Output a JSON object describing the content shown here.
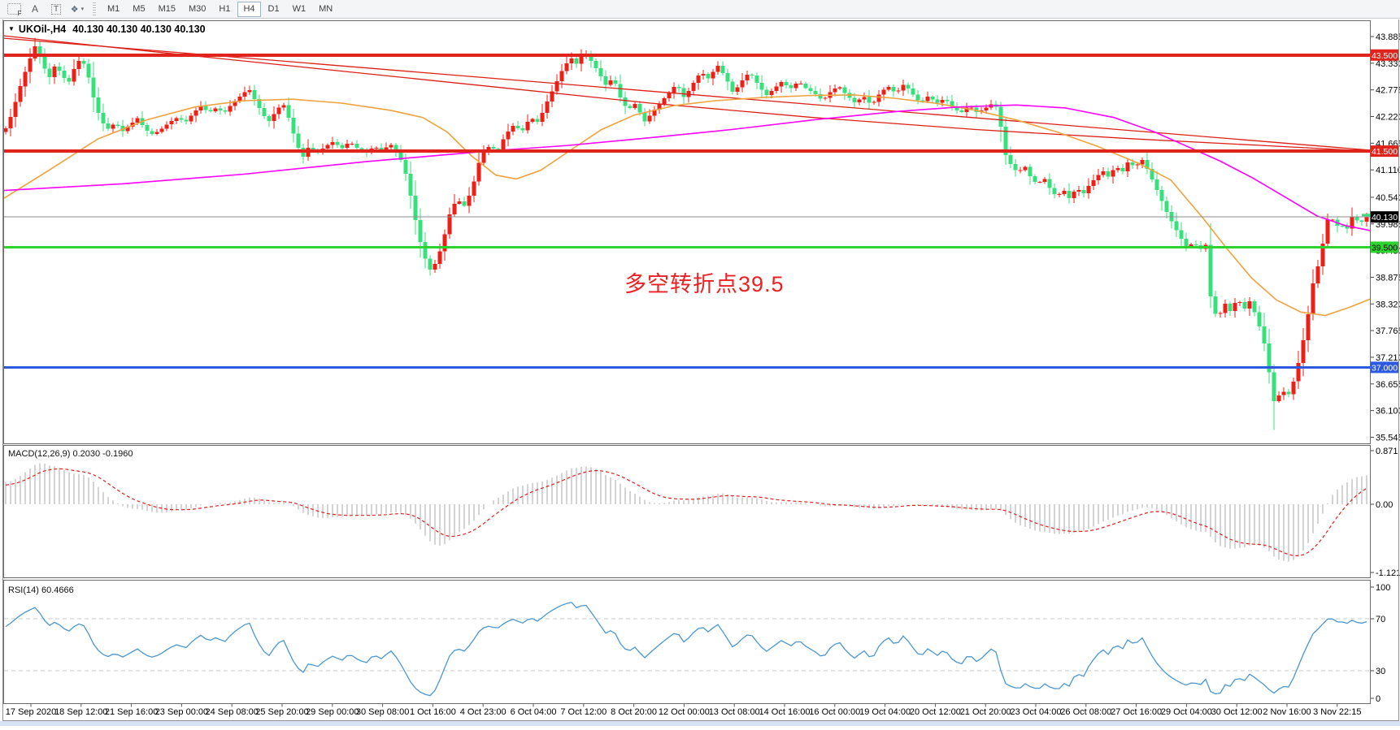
{
  "ui": {
    "toolbar": {
      "icons": [
        {
          "name": "fibonacci-icon",
          "glyph": "F"
        },
        {
          "name": "text-icon",
          "glyph": "A"
        },
        {
          "name": "label-icon",
          "glyph": "T"
        },
        {
          "name": "arrows-icon",
          "glyph": "❖"
        }
      ],
      "caret": "▾",
      "timeframes": [
        "M1",
        "M5",
        "M15",
        "M30",
        "H1",
        "H4",
        "D1",
        "W1",
        "MN"
      ],
      "active_timeframe": "H4"
    },
    "chart_title": {
      "triangle": "▼",
      "symbol": "UKOil-,H4",
      "ohlc": "40.130 40.130 40.130 40.130"
    }
  },
  "colors": {
    "candle_up": "#ef1f17",
    "candle_down": "#37e07d",
    "ma_fast": "#f0a23c",
    "ma_slow": "#ff00ff",
    "trend_red": "#dd1f16",
    "macd_bar": "#c2c2c2",
    "macd_signal": "#e02020",
    "rsi_line": "#4b96d2",
    "annotation_red": "#ee2024",
    "level_red": "#e0241b",
    "level_green": "#2fd32f",
    "level_blue": "#2d59e0",
    "current_line": "#8c8c8c"
  },
  "chart_data": {
    "type": "candlestick",
    "symbol": "UKOil-",
    "timeframe": "H4",
    "last_price": 40.13,
    "annotation": "多空转折点39.5",
    "y_axis_ticks": [
      "43.885",
      "43.330",
      "42.775",
      "42.220",
      "41.665",
      "41.110",
      "40.540",
      "39.985",
      "39.430",
      "38.875",
      "38.320",
      "37.765",
      "37.210",
      "36.655",
      "36.100",
      "35.545"
    ],
    "x_axis_labels": [
      "17 Sep 2020",
      "18 Sep 12:00",
      "21 Sep 16:00",
      "23 Sep 00:00",
      "24 Sep 08:00",
      "25 Sep 20:00",
      "29 Sep 00:00",
      "30 Sep 08:00",
      "1 Oct 16:00",
      "4 Oct 23:00",
      "6 Oct 04:00",
      "7 Oct 12:00",
      "8 Oct 20:00",
      "12 Oct 00:00",
      "13 Oct 08:00",
      "14 Oct 16:00",
      "16 Oct 00:00",
      "19 Oct 04:00",
      "20 Oct 12:00",
      "21 Oct 20:00",
      "23 Oct 04:00",
      "26 Oct 08:00",
      "27 Oct 16:00",
      "29 Oct 04:00",
      "30 Oct 12:00",
      "2 Nov 16:00",
      "3 Nov 22:15"
    ],
    "horizontal_levels": [
      {
        "price": 43.5,
        "label": "43.500",
        "color": "#e0241b",
        "width": 4,
        "badge": "#e0241b",
        "text": "#ffffff"
      },
      {
        "price": 41.5,
        "label": "41.500",
        "color": "#e0241b",
        "width": 4,
        "badge": "#e0241b",
        "text": "#ffffff"
      },
      {
        "price": 40.13,
        "label": "40.130",
        "color": "#8c8c8c",
        "width": 1,
        "badge": "#000000",
        "text": "#ffffff"
      },
      {
        "price": 39.5,
        "label": "39.500",
        "color": "#2fd32f",
        "width": 3,
        "badge": "#2fd32f",
        "text": "#000000"
      },
      {
        "price": 37.0,
        "label": "37.000",
        "color": "#2d59e0",
        "width": 3,
        "badge": "#2d59e0",
        "text": "#ffffff"
      }
    ],
    "price_path": [
      [
        5,
        41.9
      ],
      [
        14,
        42.25
      ],
      [
        24,
        42.8
      ],
      [
        34,
        43.3
      ],
      [
        44,
        43.72
      ],
      [
        52,
        43.35
      ],
      [
        60,
        43.0
      ],
      [
        68,
        43.3
      ],
      [
        76,
        43.1
      ],
      [
        84,
        42.9
      ],
      [
        92,
        43.25
      ],
      [
        100,
        43.45
      ],
      [
        108,
        43.1
      ],
      [
        116,
        42.55
      ],
      [
        124,
        42.15
      ],
      [
        132,
        41.95
      ],
      [
        142,
        42.1
      ],
      [
        150,
        41.9
      ],
      [
        160,
        42.05
      ],
      [
        170,
        42.2
      ],
      [
        178,
        41.95
      ],
      [
        188,
        41.85
      ],
      [
        198,
        41.95
      ],
      [
        208,
        42.1
      ],
      [
        218,
        42.2
      ],
      [
        228,
        42.1
      ],
      [
        238,
        42.3
      ],
      [
        248,
        42.45
      ],
      [
        256,
        42.3
      ],
      [
        266,
        42.4
      ],
      [
        276,
        42.3
      ],
      [
        286,
        42.5
      ],
      [
        296,
        42.65
      ],
      [
        306,
        42.8
      ],
      [
        314,
        42.55
      ],
      [
        322,
        42.3
      ],
      [
        330,
        42.1
      ],
      [
        340,
        42.35
      ],
      [
        348,
        42.5
      ],
      [
        356,
        42.15
      ],
      [
        364,
        41.7
      ],
      [
        372,
        41.35
      ],
      [
        380,
        41.6
      ],
      [
        390,
        41.45
      ],
      [
        400,
        41.6
      ],
      [
        410,
        41.7
      ],
      [
        420,
        41.55
      ],
      [
        430,
        41.7
      ],
      [
        440,
        41.55
      ],
      [
        450,
        41.45
      ],
      [
        460,
        41.6
      ],
      [
        470,
        41.5
      ],
      [
        480,
        41.65
      ],
      [
        490,
        41.45
      ],
      [
        498,
        41.1
      ],
      [
        506,
        40.5
      ],
      [
        514,
        39.8
      ],
      [
        522,
        39.3
      ],
      [
        530,
        39.0
      ],
      [
        538,
        39.25
      ],
      [
        546,
        39.7
      ],
      [
        554,
        40.25
      ],
      [
        562,
        40.5
      ],
      [
        572,
        40.35
      ],
      [
        582,
        40.8
      ],
      [
        592,
        41.45
      ],
      [
        602,
        41.6
      ],
      [
        612,
        41.5
      ],
      [
        622,
        41.85
      ],
      [
        632,
        42.05
      ],
      [
        642,
        41.9
      ],
      [
        652,
        42.2
      ],
      [
        662,
        42.1
      ],
      [
        672,
        42.5
      ],
      [
        682,
        42.85
      ],
      [
        692,
        43.2
      ],
      [
        702,
        43.45
      ],
      [
        710,
        43.3
      ],
      [
        718,
        43.58
      ],
      [
        726,
        43.4
      ],
      [
        736,
        43.15
      ],
      [
        746,
        42.85
      ],
      [
        754,
        43.05
      ],
      [
        762,
        42.65
      ],
      [
        772,
        42.35
      ],
      [
        782,
        42.5
      ],
      [
        792,
        42.1
      ],
      [
        802,
        42.3
      ],
      [
        812,
        42.5
      ],
      [
        822,
        42.7
      ],
      [
        832,
        42.9
      ],
      [
        842,
        42.6
      ],
      [
        852,
        42.9
      ],
      [
        862,
        43.15
      ],
      [
        872,
        43.0
      ],
      [
        882,
        43.3
      ],
      [
        892,
        43.05
      ],
      [
        902,
        42.7
      ],
      [
        912,
        42.95
      ],
      [
        922,
        43.15
      ],
      [
        932,
        42.9
      ],
      [
        942,
        42.65
      ],
      [
        952,
        42.8
      ],
      [
        962,
        42.95
      ],
      [
        972,
        42.8
      ],
      [
        982,
        42.95
      ],
      [
        992,
        42.8
      ],
      [
        1002,
        42.7
      ],
      [
        1012,
        42.55
      ],
      [
        1022,
        42.75
      ],
      [
        1032,
        42.85
      ],
      [
        1042,
        42.65
      ],
      [
        1052,
        42.5
      ],
      [
        1062,
        42.65
      ],
      [
        1072,
        42.45
      ],
      [
        1082,
        42.7
      ],
      [
        1092,
        42.85
      ],
      [
        1102,
        42.7
      ],
      [
        1112,
        42.9
      ],
      [
        1122,
        42.7
      ],
      [
        1132,
        42.5
      ],
      [
        1142,
        42.65
      ],
      [
        1152,
        42.5
      ],
      [
        1162,
        42.6
      ],
      [
        1172,
        42.4
      ],
      [
        1182,
        42.3
      ],
      [
        1192,
        42.45
      ],
      [
        1202,
        42.3
      ],
      [
        1212,
        42.4
      ],
      [
        1222,
        42.5
      ],
      [
        1228,
        42.35
      ],
      [
        1236,
        41.45
      ],
      [
        1244,
        41.2
      ],
      [
        1252,
        41.05
      ],
      [
        1260,
        41.2
      ],
      [
        1268,
        40.95
      ],
      [
        1276,
        40.8
      ],
      [
        1284,
        40.95
      ],
      [
        1292,
        40.7
      ],
      [
        1300,
        40.55
      ],
      [
        1308,
        40.7
      ],
      [
        1316,
        40.5
      ],
      [
        1324,
        40.75
      ],
      [
        1332,
        40.6
      ],
      [
        1340,
        40.8
      ],
      [
        1348,
        40.95
      ],
      [
        1356,
        41.1
      ],
      [
        1364,
        40.95
      ],
      [
        1372,
        41.2
      ],
      [
        1380,
        41.05
      ],
      [
        1388,
        41.3
      ],
      [
        1396,
        41.15
      ],
      [
        1404,
        41.35
      ],
      [
        1412,
        41.1
      ],
      [
        1420,
        40.8
      ],
      [
        1428,
        40.5
      ],
      [
        1436,
        40.2
      ],
      [
        1444,
        39.95
      ],
      [
        1452,
        39.7
      ],
      [
        1460,
        39.5
      ],
      [
        1468,
        39.6
      ],
      [
        1476,
        39.45
      ],
      [
        1483,
        39.55
      ],
      [
        1490,
        38.3
      ],
      [
        1498,
        38.0
      ],
      [
        1506,
        38.35
      ],
      [
        1514,
        38.15
      ],
      [
        1522,
        38.45
      ],
      [
        1530,
        38.2
      ],
      [
        1538,
        38.4
      ],
      [
        1546,
        38.0
      ],
      [
        1554,
        37.6
      ],
      [
        1562,
        36.8
      ],
      [
        1568,
        36.2
      ],
      [
        1576,
        36.55
      ],
      [
        1584,
        36.4
      ],
      [
        1592,
        36.75
      ],
      [
        1600,
        37.3
      ],
      [
        1608,
        38.0
      ],
      [
        1616,
        38.85
      ],
      [
        1624,
        39.25
      ],
      [
        1630,
        39.9
      ],
      [
        1636,
        40.25
      ],
      [
        1642,
        39.9
      ],
      [
        1648,
        40.0
      ],
      [
        1656,
        39.85
      ],
      [
        1664,
        40.18
      ],
      [
        1672,
        39.98
      ],
      [
        1681,
        40.13
      ]
    ],
    "extremes": {
      "high": 43.86,
      "low": 35.7
    },
    "overlays": {
      "trendline_red": [
        [
          5,
          43.85
        ],
        [
          1685,
          41.52
        ]
      ],
      "ma_long_red": [
        [
          5,
          43.9
        ],
        [
          200,
          43.55
        ],
        [
          400,
          43.2
        ],
        [
          600,
          42.85
        ],
        [
          800,
          42.5
        ],
        [
          1000,
          42.2
        ],
        [
          1200,
          41.95
        ],
        [
          1400,
          41.75
        ],
        [
          1550,
          41.62
        ],
        [
          1685,
          41.5
        ]
      ],
      "ma_fast_orange": [
        [
          5,
          40.52
        ],
        [
          60,
          41.1
        ],
        [
          120,
          41.75
        ],
        [
          180,
          42.15
        ],
        [
          240,
          42.42
        ],
        [
          300,
          42.55
        ],
        [
          360,
          42.58
        ],
        [
          420,
          42.5
        ],
        [
          480,
          42.35
        ],
        [
          520,
          42.2
        ],
        [
          550,
          41.9
        ],
        [
          580,
          41.4
        ],
        [
          610,
          41.0
        ],
        [
          635,
          40.92
        ],
        [
          665,
          41.1
        ],
        [
          700,
          41.5
        ],
        [
          740,
          41.95
        ],
        [
          780,
          42.25
        ],
        [
          830,
          42.45
        ],
        [
          880,
          42.55
        ],
        [
          940,
          42.62
        ],
        [
          1000,
          42.66
        ],
        [
          1050,
          42.67
        ],
        [
          1100,
          42.6
        ],
        [
          1150,
          42.5
        ],
        [
          1200,
          42.35
        ],
        [
          1250,
          42.15
        ],
        [
          1300,
          41.9
        ],
        [
          1350,
          41.6
        ],
        [
          1400,
          41.25
        ],
        [
          1440,
          40.9
        ],
        [
          1480,
          40.1
        ],
        [
          1510,
          39.45
        ],
        [
          1540,
          38.85
        ],
        [
          1570,
          38.4
        ],
        [
          1600,
          38.15
        ],
        [
          1630,
          38.08
        ],
        [
          1660,
          38.25
        ],
        [
          1685,
          38.42
        ]
      ],
      "ma_slow_magenta": [
        [
          5,
          40.68
        ],
        [
          150,
          40.82
        ],
        [
          300,
          41.02
        ],
        [
          450,
          41.28
        ],
        [
          600,
          41.5
        ],
        [
          700,
          41.62
        ],
        [
          800,
          41.78
        ],
        [
          900,
          41.95
        ],
        [
          1000,
          42.15
        ],
        [
          1100,
          42.32
        ],
        [
          1180,
          42.42
        ],
        [
          1250,
          42.46
        ],
        [
          1310,
          42.4
        ],
        [
          1370,
          42.2
        ],
        [
          1420,
          41.9
        ],
        [
          1460,
          41.6
        ],
        [
          1500,
          41.3
        ],
        [
          1540,
          40.95
        ],
        [
          1580,
          40.55
        ],
        [
          1620,
          40.15
        ],
        [
          1655,
          39.95
        ],
        [
          1685,
          39.85
        ]
      ]
    },
    "indicators": {
      "macd": {
        "label": "MACD(12,26,9) 0.2030 -0.1960",
        "params": [
          12,
          26,
          9
        ],
        "value_main": 0.203,
        "value_signal": -0.196,
        "axis_ticks": [
          "0.871",
          "0.00",
          "-1.1215"
        ]
      },
      "rsi": {
        "label": "RSI(14) 60.4666",
        "period": 14,
        "value": 60.4666,
        "axis_ticks": [
          "100",
          "70",
          "30",
          "0"
        ],
        "reference_levels": [
          70,
          30
        ]
      }
    }
  }
}
